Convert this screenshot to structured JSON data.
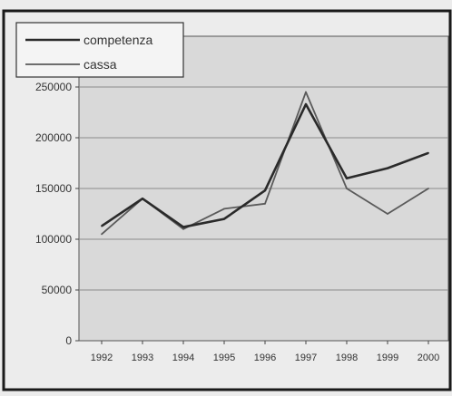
{
  "chart_data": {
    "type": "line",
    "categories": [
      "1992",
      "1993",
      "1994",
      "1995",
      "1996",
      "1997",
      "1998",
      "1999",
      "2000"
    ],
    "series": [
      {
        "name": "competenza",
        "values": [
          113000,
          140000,
          112000,
          120000,
          148000,
          233000,
          160000,
          170000,
          185000
        ]
      },
      {
        "name": "cassa",
        "values": [
          105000,
          140000,
          110000,
          130000,
          135000,
          245000,
          150000,
          125000,
          150000
        ]
      }
    ],
    "y_ticks": [
      "0",
      "50000",
      "100000",
      "150000",
      "200000",
      "250000"
    ],
    "ylim": [
      0,
      250000
    ],
    "grid": true,
    "legend_position": "top-left",
    "title": "",
    "xlabel": "",
    "ylabel": "",
    "colors": {
      "competenza": "#2a2a2a",
      "cassa": "#5a5a5a",
      "plot_background": "#d9d9d9",
      "gridline": "#8a8a8a",
      "frame": "#1a1a1a",
      "text": "#333333"
    }
  }
}
